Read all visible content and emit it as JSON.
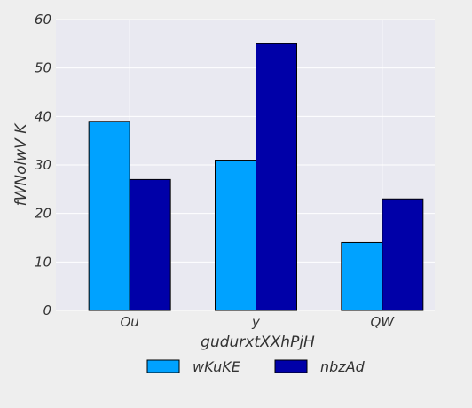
{
  "chart_data": {
    "type": "bar",
    "categories": [
      "Ou",
      "y",
      "QW"
    ],
    "series": [
      {
        "name": "wKuKE",
        "values": [
          39,
          31,
          14
        ],
        "color": "#00a2ff"
      },
      {
        "name": "nbzAd",
        "values": [
          27,
          55,
          23
        ],
        "color": "#0000a8"
      }
    ],
    "xlabel": "gudurxtXXhPjH",
    "ylabel": "fWNolwV K",
    "ylim": [
      0,
      60
    ],
    "yticks": [
      0,
      10,
      20,
      30,
      40,
      50,
      60
    ],
    "grid": true,
    "legend_position": "bottom"
  },
  "colors": {
    "plot_background": "#e9e9f1",
    "page_background": "#eeeeee",
    "grid": "#ffffff",
    "bar_edge": "#000000"
  }
}
